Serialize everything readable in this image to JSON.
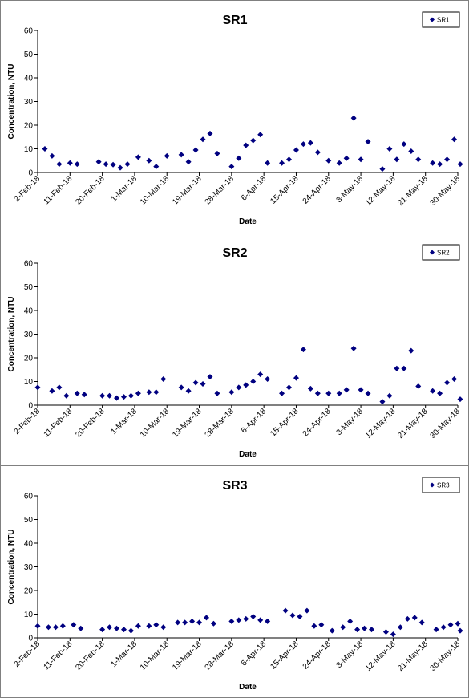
{
  "chart_data": [
    {
      "type": "scatter",
      "title": "SR1",
      "xlabel": "Date",
      "ylabel": "Concentration, NTU",
      "ylim": [
        0,
        60
      ],
      "yticks": [
        "0",
        "10",
        "20",
        "30",
        "40",
        "50",
        "60"
      ],
      "xlim": [
        "2018-02-02",
        "2018-05-30"
      ],
      "xticks": [
        "2-Feb-18",
        "11-Feb-18",
        "20-Feb-18",
        "1-Mar-18",
        "10-Mar-18",
        "19-Mar-18",
        "28-Mar-18",
        "6-Apr-18",
        "15-Apr-18",
        "24-Apr-18",
        "3-May-18",
        "12-May-18",
        "21-May-18",
        "30-May-18"
      ],
      "grid": false,
      "legend_position": "top-right",
      "marker_color": "#000080",
      "series": [
        {
          "name": "SR1",
          "x": [
            "2018-02-04",
            "2018-02-06",
            "2018-02-08",
            "2018-02-11",
            "2018-02-13",
            "2018-02-19",
            "2018-02-21",
            "2018-02-23",
            "2018-02-25",
            "2018-02-27",
            "2018-03-02",
            "2018-03-05",
            "2018-03-07",
            "2018-03-10",
            "2018-03-14",
            "2018-03-16",
            "2018-03-18",
            "2018-03-20",
            "2018-03-22",
            "2018-03-24",
            "2018-03-28",
            "2018-03-30",
            "2018-04-01",
            "2018-04-03",
            "2018-04-05",
            "2018-04-07",
            "2018-04-11",
            "2018-04-13",
            "2018-04-15",
            "2018-04-17",
            "2018-04-19",
            "2018-04-21",
            "2018-04-24",
            "2018-04-27",
            "2018-04-29",
            "2018-05-01",
            "2018-05-03",
            "2018-05-05",
            "2018-05-09",
            "2018-05-11",
            "2018-05-13",
            "2018-05-15",
            "2018-05-17",
            "2018-05-19",
            "2018-05-23",
            "2018-05-25",
            "2018-05-27",
            "2018-05-29",
            "2018-05-31"
          ],
          "y": [
            10,
            7,
            3.5,
            4,
            3.5,
            4.5,
            3.5,
            3.3,
            2,
            3.5,
            6.5,
            5,
            2.5,
            7,
            7.5,
            4.5,
            9.5,
            14,
            16.5,
            8,
            2.5,
            6,
            11.5,
            13.5,
            16,
            4,
            4,
            5.5,
            9.5,
            12,
            12.5,
            8.5,
            5,
            4,
            6,
            23,
            5.5,
            13,
            1.5,
            10,
            5.5,
            12,
            9,
            5.5,
            4,
            3.5,
            5.5,
            14,
            3.5
          ]
        }
      ]
    },
    {
      "type": "scatter",
      "title": "SR2",
      "xlabel": "Date",
      "ylabel": "Concentration, NTU",
      "ylim": [
        0,
        60
      ],
      "yticks": [
        "0",
        "10",
        "20",
        "30",
        "40",
        "50",
        "60"
      ],
      "xlim": [
        "2018-02-02",
        "2018-05-30"
      ],
      "xticks": [
        "2-Feb-18",
        "11-Feb-18",
        "20-Feb-18",
        "1-Mar-18",
        "10-Mar-18",
        "19-Mar-18",
        "28-Mar-18",
        "6-Apr-18",
        "15-Apr-18",
        "24-Apr-18",
        "3-May-18",
        "12-May-18",
        "21-May-18",
        "30-May-18"
      ],
      "grid": false,
      "legend_position": "top-right",
      "marker_color": "#000080",
      "series": [
        {
          "name": "SR2",
          "x": [
            "2018-02-02",
            "2018-02-06",
            "2018-02-08",
            "2018-02-10",
            "2018-02-13",
            "2018-02-15",
            "2018-02-20",
            "2018-02-22",
            "2018-02-24",
            "2018-02-26",
            "2018-02-28",
            "2018-03-02",
            "2018-03-05",
            "2018-03-07",
            "2018-03-09",
            "2018-03-14",
            "2018-03-16",
            "2018-03-18",
            "2018-03-20",
            "2018-03-22",
            "2018-03-24",
            "2018-03-28",
            "2018-03-30",
            "2018-04-01",
            "2018-04-03",
            "2018-04-05",
            "2018-04-07",
            "2018-04-11",
            "2018-04-13",
            "2018-04-15",
            "2018-04-17",
            "2018-04-19",
            "2018-04-21",
            "2018-04-24",
            "2018-04-27",
            "2018-04-29",
            "2018-05-01",
            "2018-05-03",
            "2018-05-05",
            "2018-05-09",
            "2018-05-11",
            "2018-05-13",
            "2018-05-15",
            "2018-05-17",
            "2018-05-19",
            "2018-05-23",
            "2018-05-25",
            "2018-05-27",
            "2018-05-29",
            "2018-05-31"
          ],
          "y": [
            7.5,
            6,
            7.5,
            4,
            5,
            4.5,
            4,
            4,
            3,
            3.5,
            4,
            5,
            5.5,
            5.5,
            11,
            7.5,
            6,
            9.5,
            9,
            12,
            5,
            5.5,
            7.5,
            8.5,
            10,
            13,
            11,
            5,
            7.5,
            11.5,
            23.5,
            7,
            5,
            5,
            5,
            6.5,
            24,
            6.5,
            5,
            1.5,
            4,
            15.5,
            15.5,
            23,
            8,
            6,
            5,
            9.5,
            11,
            2.5
          ]
        }
      ]
    },
    {
      "type": "scatter",
      "title": "SR3",
      "xlabel": "Date",
      "ylabel": "Concentration, NTU",
      "ylim": [
        0,
        60
      ],
      "yticks": [
        "0",
        "10",
        "20",
        "30",
        "40",
        "50",
        "60"
      ],
      "xlim": [
        "2018-02-02",
        "2018-05-30"
      ],
      "xticks": [
        "2-Feb-18",
        "11-Feb-18",
        "20-Feb-18",
        "1-Mar-18",
        "10-Mar-18",
        "19-Mar-18",
        "28-Mar-18",
        "6-Apr-18",
        "15-Apr-18",
        "24-Apr-18",
        "3-May-18",
        "12-May-18",
        "21-May-18",
        "30-May-18"
      ],
      "grid": false,
      "legend_position": "top-right",
      "marker_color": "#000080",
      "series": [
        {
          "name": "SR3",
          "x": [
            "2018-02-02",
            "2018-02-05",
            "2018-02-07",
            "2018-02-09",
            "2018-02-12",
            "2018-02-14",
            "2018-02-20",
            "2018-02-22",
            "2018-02-24",
            "2018-02-26",
            "2018-02-28",
            "2018-03-02",
            "2018-03-05",
            "2018-03-07",
            "2018-03-09",
            "2018-03-13",
            "2018-03-15",
            "2018-03-17",
            "2018-03-19",
            "2018-03-21",
            "2018-03-23",
            "2018-03-28",
            "2018-03-30",
            "2018-04-01",
            "2018-04-03",
            "2018-04-05",
            "2018-04-07",
            "2018-04-12",
            "2018-04-14",
            "2018-04-16",
            "2018-04-18",
            "2018-04-20",
            "2018-04-22",
            "2018-04-25",
            "2018-04-28",
            "2018-04-30",
            "2018-05-02",
            "2018-05-04",
            "2018-05-06",
            "2018-05-10",
            "2018-05-12",
            "2018-05-14",
            "2018-05-16",
            "2018-05-18",
            "2018-05-20",
            "2018-05-24",
            "2018-05-26",
            "2018-05-28",
            "2018-05-30",
            "2018-06-01"
          ],
          "y": [
            5,
            4.5,
            4.5,
            5,
            5.5,
            4,
            3.5,
            4.5,
            4,
            3.5,
            3,
            5,
            5,
            5.5,
            4.5,
            6.5,
            6.5,
            7,
            6.5,
            8.5,
            6,
            7,
            7.5,
            8,
            9,
            7.5,
            7,
            11.5,
            9.5,
            9,
            11.5,
            5,
            5.5,
            3,
            4.5,
            7,
            3.5,
            4,
            3.5,
            2.5,
            1.5,
            4.5,
            8,
            8.5,
            6.5,
            3.5,
            4.5,
            5.5,
            6,
            3
          ]
        }
      ]
    }
  ]
}
